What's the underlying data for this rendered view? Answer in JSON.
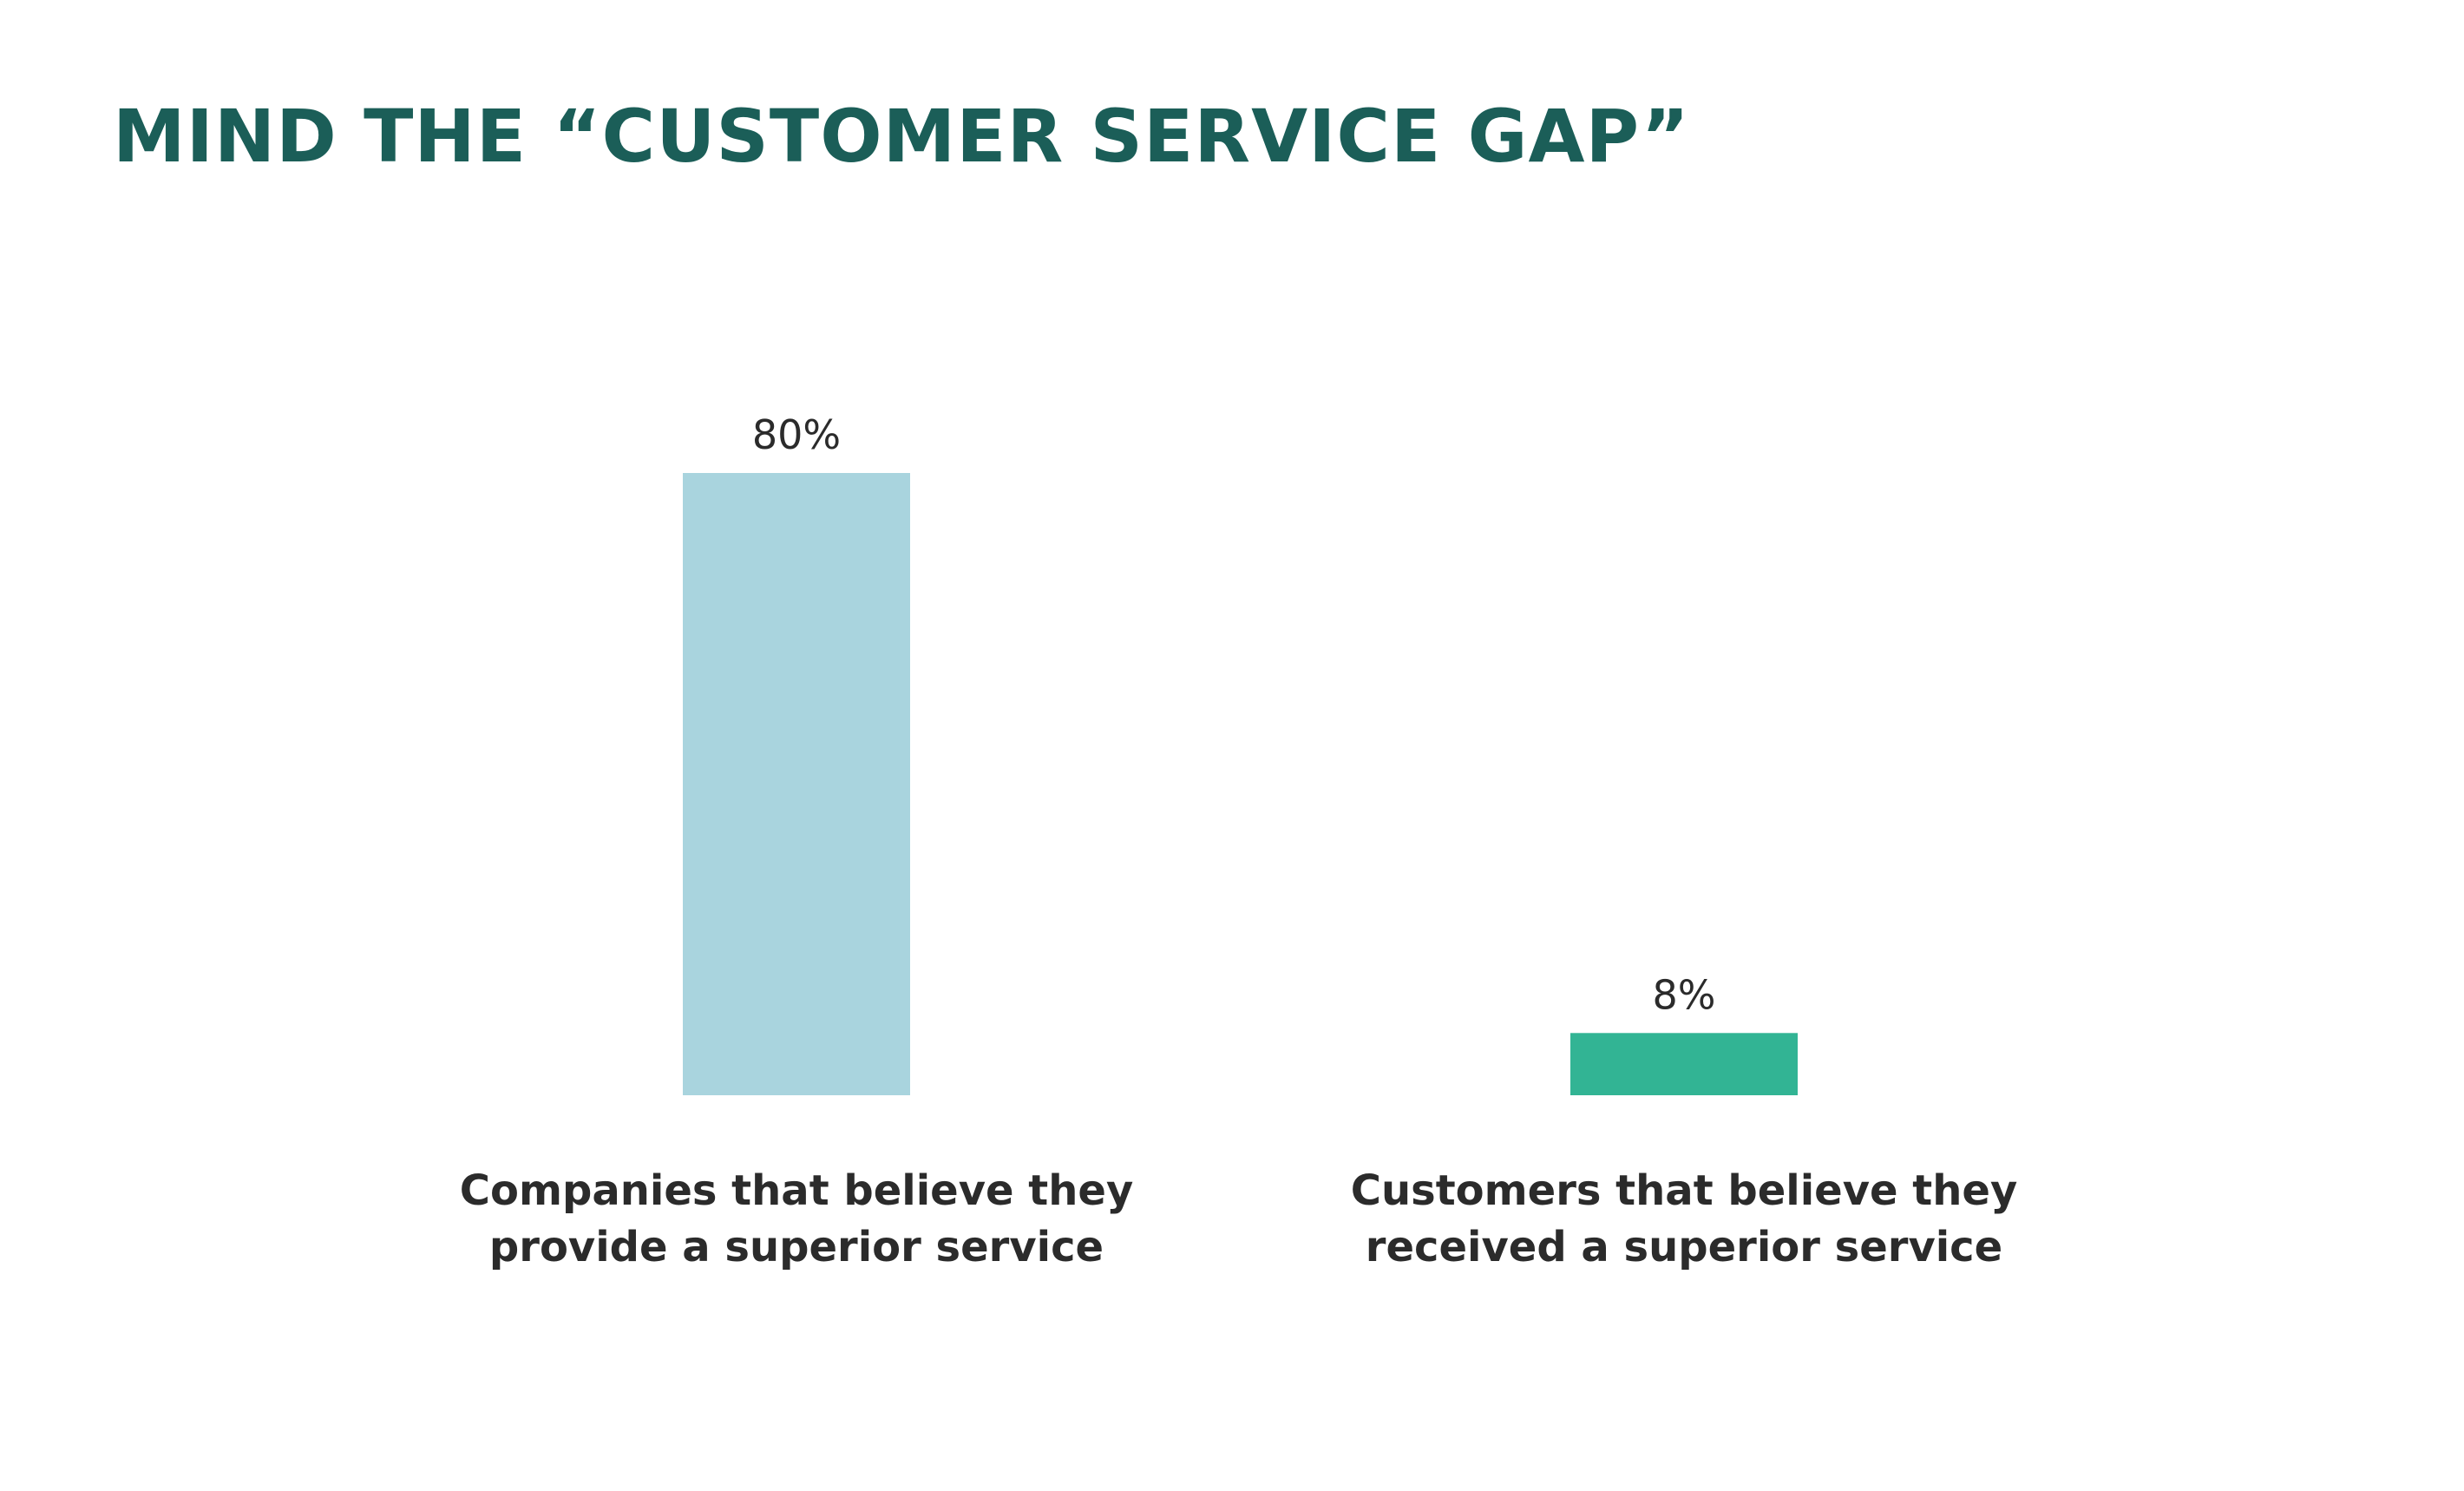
{
  "title": "MIND THE “CUSTOMER SERVICE GAP”",
  "chart_data": {
    "type": "bar",
    "title": "MIND THE “CUSTOMER SERVICE GAP”",
    "categories": [
      [
        "Companies that believe they",
        "provide a superior service"
      ],
      [
        "Customers that believe they",
        "received a superior service"
      ]
    ],
    "values": [
      80,
      8
    ],
    "value_labels": [
      "80%",
      "8%"
    ],
    "colors": [
      "#a9d4de",
      "#32b494"
    ],
    "unit": "%",
    "ylim": [
      0,
      80
    ],
    "grid": false,
    "legend": "none",
    "xlabel": "",
    "ylabel": ""
  }
}
